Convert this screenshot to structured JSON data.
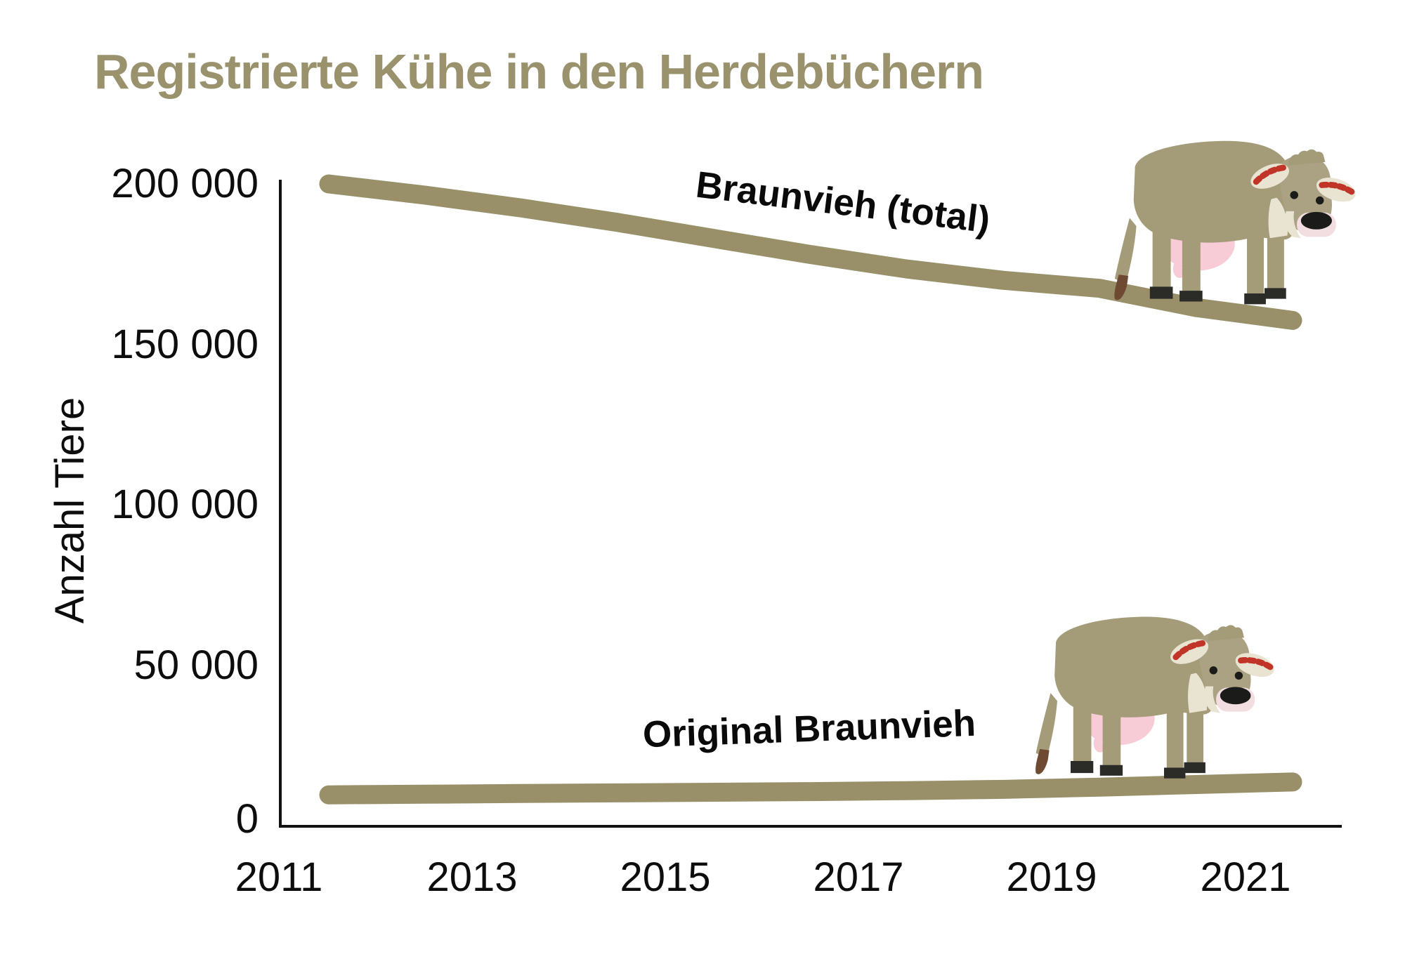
{
  "chart_data": {
    "type": "line",
    "title": "Registrierte Kühe in den Herdebüchern",
    "xlabel": "",
    "ylabel": "Anzahl Tiere",
    "x": [
      2011,
      2012,
      2013,
      2014,
      2015,
      2016,
      2017,
      2018,
      2019,
      2020,
      2021
    ],
    "series": [
      {
        "name": "Braunvieh (total)",
        "values": [
          200000,
          196500,
          192500,
          188000,
          183000,
          178000,
          173500,
          170000,
          167500,
          161500,
          157500
        ]
      },
      {
        "name": "Original Braunvieh",
        "values": [
          9800,
          10000,
          10200,
          10400,
          10600,
          10800,
          11100,
          11500,
          12200,
          13000,
          13800
        ]
      }
    ],
    "ylim": [
      0,
      200000
    ],
    "yticks": [
      "200 000",
      "150 000",
      "100 000",
      "50 000",
      "0"
    ],
    "ytick_values": [
      200000,
      150000,
      100000,
      50000,
      0
    ],
    "xticks": [
      "2011",
      "2013",
      "2015",
      "2017",
      "2019",
      "2021"
    ],
    "grid": false,
    "legend_position": "inline-annotations-on-lines"
  },
  "colors": {
    "title_olive": "#9A926D",
    "line_olive": "#99906A",
    "axis_black": "#111111",
    "text_black": "#0D0D0D",
    "cow_body": "#A49B78",
    "cow_head": "#ABA284",
    "cow_cream": "#E9E3D1",
    "cow_udder_pink": "#F8CCD6",
    "cow_muzzle_pink": "#F2DEE0",
    "cow_nose_dark": "#1B1B19",
    "cow_hoof_dark": "#2B2B28",
    "cow_tail_brown": "#6E4A33",
    "cow_ear_red": "#C03528"
  },
  "icons": {
    "cow_top": "braunvieh-cow-illustration",
    "cow_bottom": "original-braunvieh-cow-illustration"
  }
}
